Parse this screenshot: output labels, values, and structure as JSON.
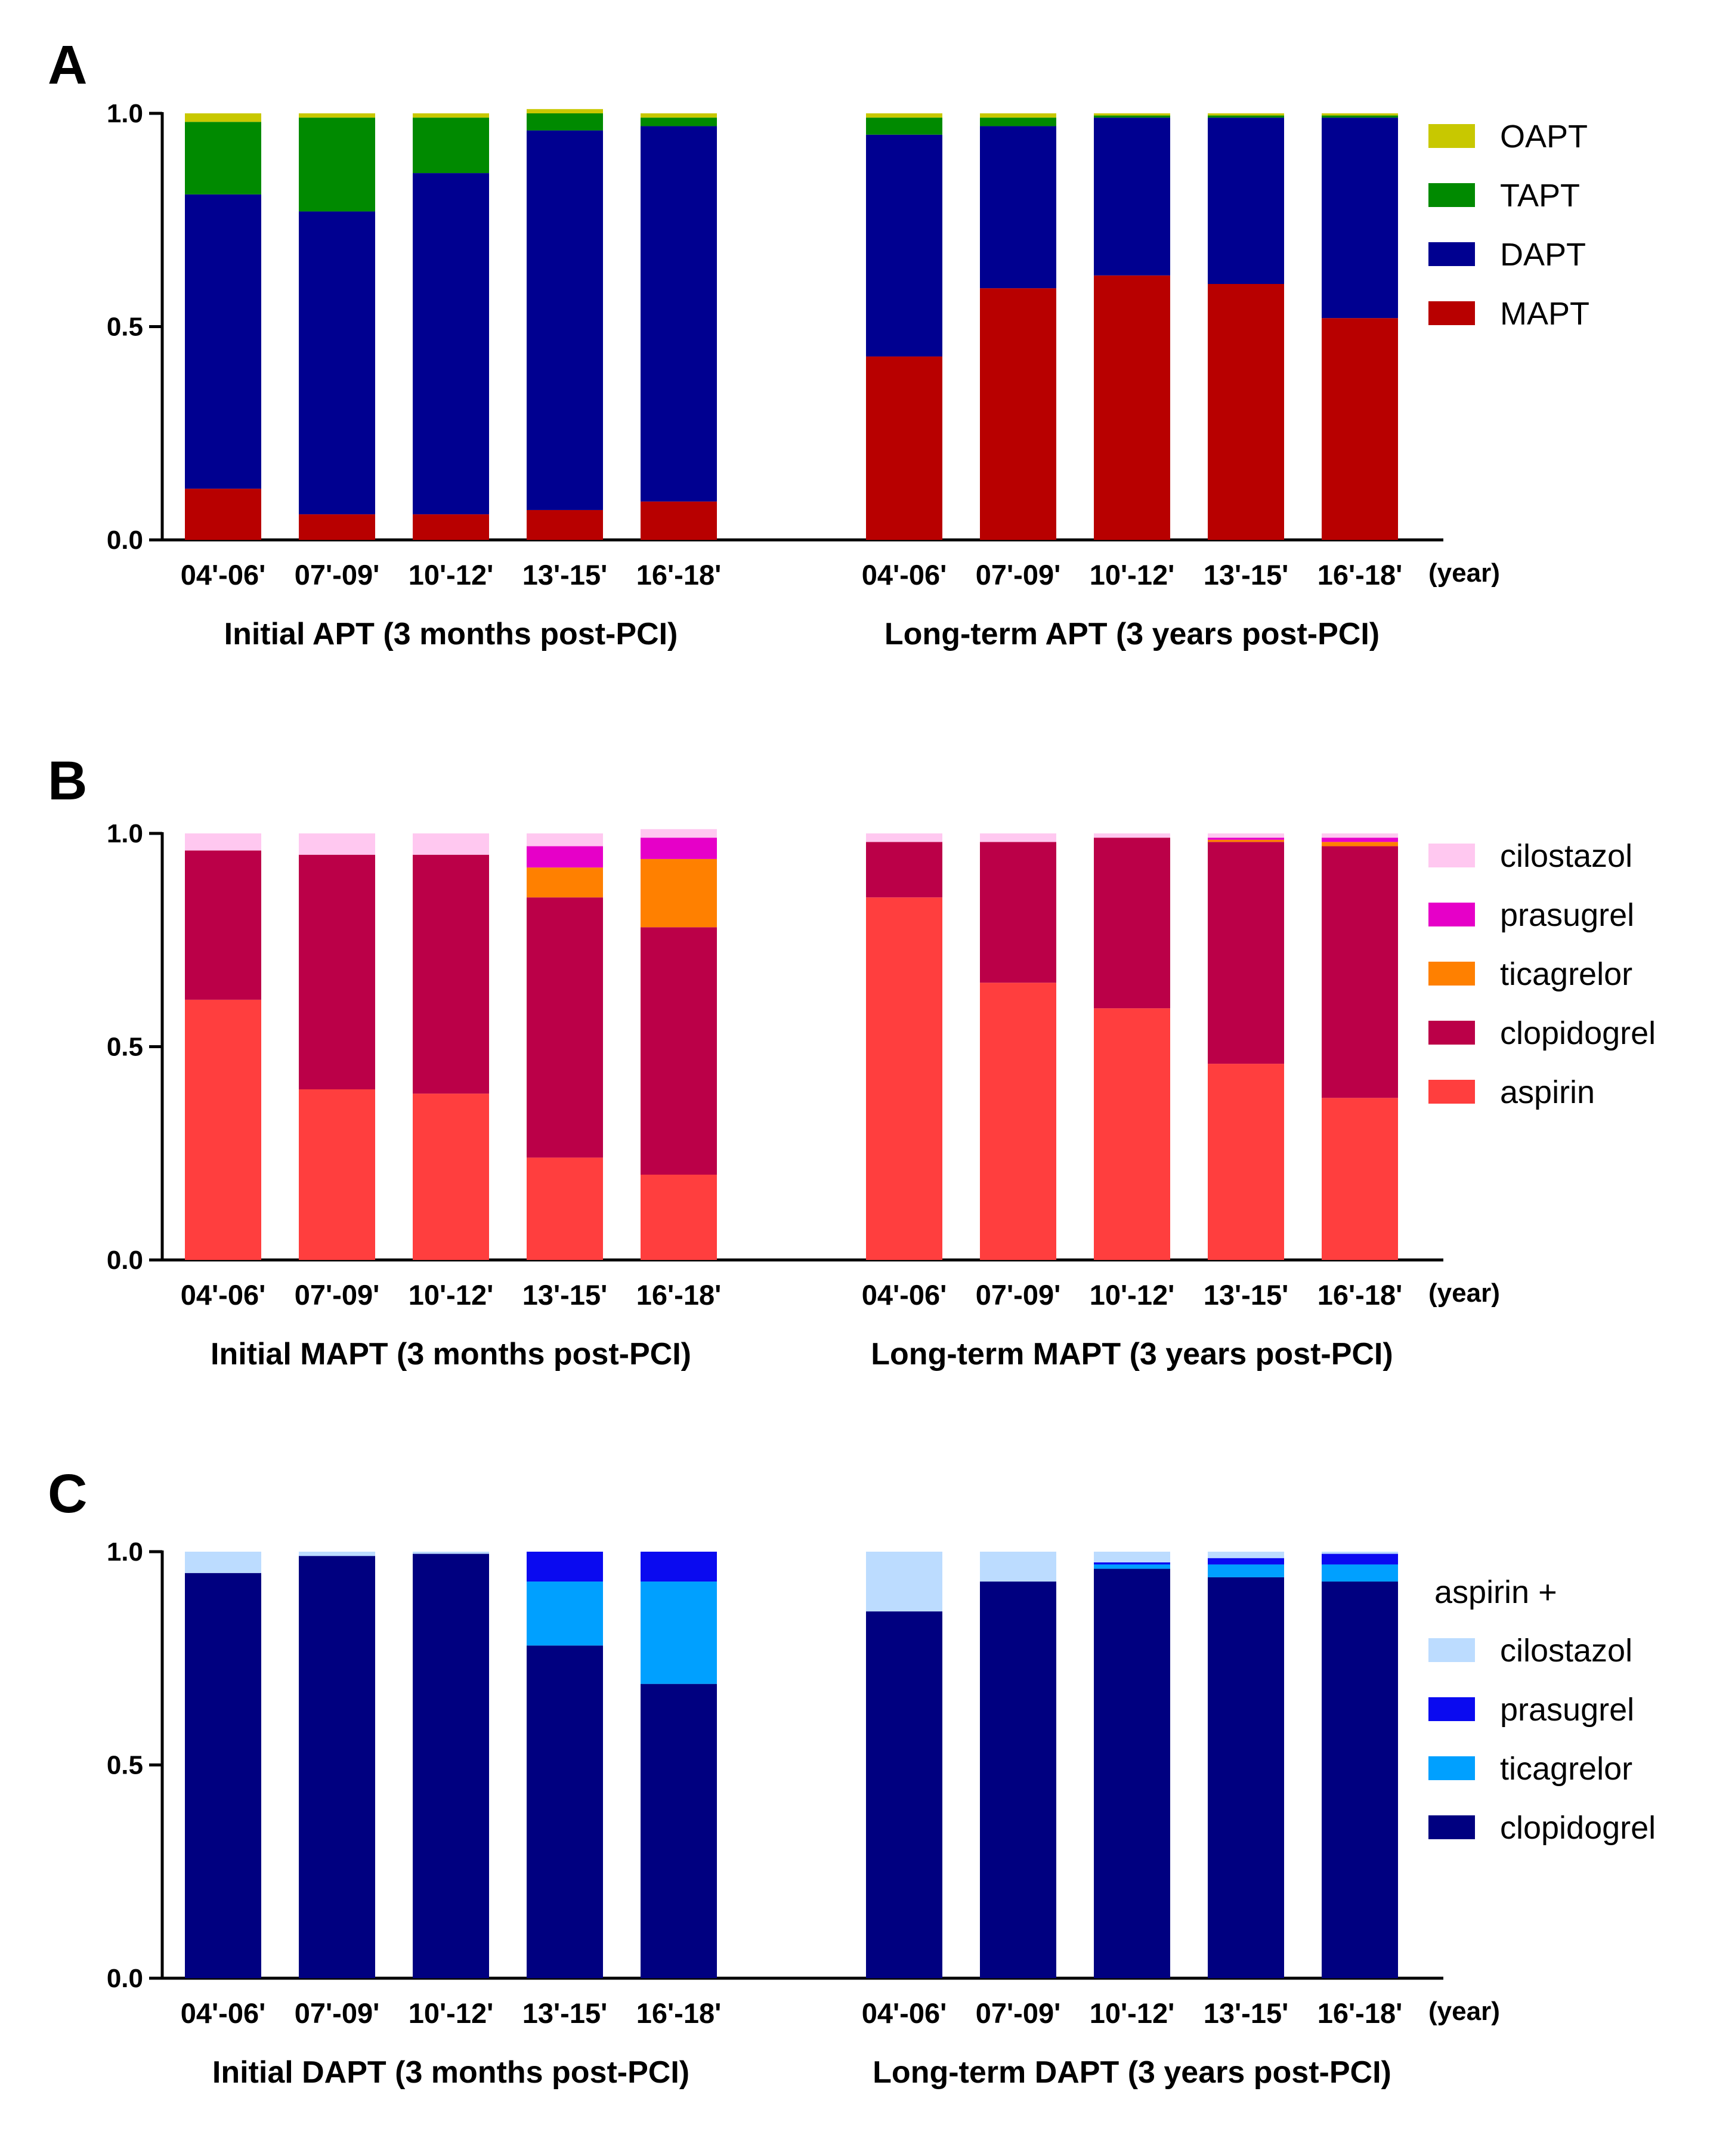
{
  "chart_data": [
    {
      "panel": "A",
      "type": "bar",
      "stacked": true,
      "ylim": [
        0,
        1
      ],
      "yticks": [
        "0.0",
        "0.5",
        "1.0"
      ],
      "x_unit_label": "(year)",
      "legend": {
        "placement": "top-right",
        "heading": ""
      },
      "groups": [
        {
          "title": "Initial APT (3 months post-PCI)",
          "categories": [
            "04'-06'",
            "07'-09'",
            "10'-12'",
            "13'-15'",
            "16'-18'"
          ],
          "series": [
            {
              "name": "MAPT",
              "color": "#b80000",
              "values": [
                0.12,
                0.06,
                0.06,
                0.07,
                0.09
              ]
            },
            {
              "name": "DAPT",
              "color": "#000090",
              "values": [
                0.69,
                0.71,
                0.8,
                0.89,
                0.88
              ]
            },
            {
              "name": "TAPT",
              "color": "#008a00",
              "values": [
                0.17,
                0.22,
                0.13,
                0.04,
                0.02
              ]
            },
            {
              "name": "OAPT",
              "color": "#c8c800",
              "values": [
                0.02,
                0.01,
                0.01,
                0.01,
                0.01
              ]
            }
          ]
        },
        {
          "title": "Long-term APT (3 years post-PCI)",
          "categories": [
            "04'-06'",
            "07'-09'",
            "10'-12'",
            "13'-15'",
            "16'-18'"
          ],
          "series": [
            {
              "name": "MAPT",
              "color": "#b80000",
              "values": [
                0.43,
                0.59,
                0.62,
                0.6,
                0.52
              ]
            },
            {
              "name": "DAPT",
              "color": "#000090",
              "values": [
                0.52,
                0.38,
                0.37,
                0.39,
                0.47
              ]
            },
            {
              "name": "TAPT",
              "color": "#008a00",
              "values": [
                0.04,
                0.02,
                0.005,
                0.005,
                0.005
              ]
            },
            {
              "name": "OAPT",
              "color": "#c8c800",
              "values": [
                0.01,
                0.01,
                0.005,
                0.005,
                0.005
              ]
            }
          ]
        }
      ]
    },
    {
      "panel": "B",
      "type": "bar",
      "stacked": true,
      "ylim": [
        0,
        1
      ],
      "yticks": [
        "0.0",
        "0.5",
        "1.0"
      ],
      "x_unit_label": "(year)",
      "legend": {
        "placement": "top-right",
        "heading": ""
      },
      "groups": [
        {
          "title": "Initial MAPT (3 months post-PCI)",
          "categories": [
            "04'-06'",
            "07'-09'",
            "10'-12'",
            "13'-15'",
            "16'-18'"
          ],
          "series": [
            {
              "name": "aspirin",
              "color": "#ff3e3e",
              "values": [
                0.61,
                0.4,
                0.39,
                0.24,
                0.2
              ]
            },
            {
              "name": "clopidogrel",
              "color": "#bb0048",
              "values": [
                0.35,
                0.55,
                0.56,
                0.61,
                0.58
              ]
            },
            {
              "name": "ticagrelor",
              "color": "#ff8000",
              "values": [
                0,
                0,
                0,
                0.07,
                0.16
              ]
            },
            {
              "name": "prasugrel",
              "color": "#e600c8",
              "values": [
                0,
                0,
                0,
                0.05,
                0.05
              ]
            },
            {
              "name": "cilostazol",
              "color": "#ffc8f0",
              "values": [
                0.04,
                0.05,
                0.05,
                0.03,
                0.02
              ]
            }
          ]
        },
        {
          "title": "Long-term MAPT  (3 years post-PCI)",
          "categories": [
            "04'-06'",
            "07'-09'",
            "10'-12'",
            "13'-15'",
            "16'-18'"
          ],
          "series": [
            {
              "name": "aspirin",
              "color": "#ff3e3e",
              "values": [
                0.85,
                0.65,
                0.59,
                0.46,
                0.38
              ]
            },
            {
              "name": "clopidogrel",
              "color": "#bb0048",
              "values": [
                0.13,
                0.33,
                0.4,
                0.52,
                0.59
              ]
            },
            {
              "name": "ticagrelor",
              "color": "#ff8000",
              "values": [
                0,
                0,
                0,
                0.005,
                0.01
              ]
            },
            {
              "name": "prasugrel",
              "color": "#e600c8",
              "values": [
                0,
                0,
                0,
                0.005,
                0.01
              ]
            },
            {
              "name": "cilostazol",
              "color": "#ffc8f0",
              "values": [
                0.02,
                0.02,
                0.01,
                0.01,
                0.01
              ]
            }
          ]
        }
      ]
    },
    {
      "panel": "C",
      "type": "bar",
      "stacked": true,
      "ylim": [
        0,
        1
      ],
      "yticks": [
        "0.0",
        "0.5",
        "1.0"
      ],
      "x_unit_label": "(year)",
      "legend": {
        "placement": "top-right",
        "heading": "aspirin +"
      },
      "groups": [
        {
          "title": "Initial DAPT (3 months post-PCI)",
          "categories": [
            "04'-06'",
            "07'-09'",
            "10'-12'",
            "13'-15'",
            "16'-18'"
          ],
          "series": [
            {
              "name": "clopidogrel",
              "color": "#000080",
              "values": [
                0.95,
                0.99,
                0.995,
                0.78,
                0.69
              ]
            },
            {
              "name": "ticagrelor",
              "color": "#00a0ff",
              "values": [
                0,
                0,
                0,
                0.15,
                0.24
              ]
            },
            {
              "name": "prasugrel",
              "color": "#0a0af0",
              "values": [
                0,
                0,
                0,
                0.07,
                0.07
              ]
            },
            {
              "name": "cilostazol",
              "color": "#bcdcff",
              "values": [
                0.05,
                0.01,
                0.005,
                0,
                0
              ]
            }
          ]
        },
        {
          "title": "Long-term DAPT (3 years post-PCI)",
          "categories": [
            "04'-06'",
            "07'-09'",
            "10'-12'",
            "13'-15'",
            "16'-18'"
          ],
          "series": [
            {
              "name": "clopidogrel",
              "color": "#000080",
              "values": [
                0.86,
                0.93,
                0.96,
                0.94,
                0.93
              ]
            },
            {
              "name": "ticagrelor",
              "color": "#00a0ff",
              "values": [
                0,
                0,
                0.01,
                0.03,
                0.04
              ]
            },
            {
              "name": "prasugrel",
              "color": "#0a0af0",
              "values": [
                0,
                0,
                0.005,
                0.015,
                0.025
              ]
            },
            {
              "name": "cilostazol",
              "color": "#bcdcff",
              "values": [
                0.14,
                0.07,
                0.025,
                0.015,
                0.005
              ]
            }
          ]
        }
      ]
    }
  ]
}
